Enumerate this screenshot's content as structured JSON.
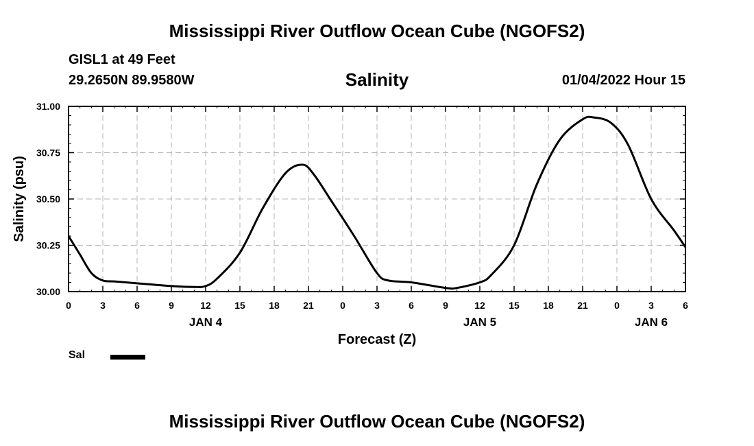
{
  "header": {
    "title": "Mississippi River Outflow Ocean Cube (NGOFS2)",
    "station": "GISL1 at 49 Feet",
    "coords": "29.2650N  89.9580W",
    "plot_title": "Salinity",
    "datetime": "01/04/2022 Hour 15"
  },
  "footer": {
    "title": "Mississippi River Outflow Ocean Cube (NGOFS2)"
  },
  "legend": {
    "label": "Sal",
    "color": "#000000"
  },
  "chart_data": {
    "type": "line",
    "title": "Salinity",
    "xlabel": "Forecast (Z)",
    "ylabel": "Salinity (psu)",
    "xlim": [
      0,
      54
    ],
    "ylim": [
      30.0,
      31.0
    ],
    "grid": true,
    "x_ticks": [
      0,
      3,
      6,
      9,
      12,
      15,
      18,
      21,
      24,
      27,
      30,
      33,
      36,
      39,
      42,
      45,
      48,
      51,
      54
    ],
    "x_tick_labels": [
      "0",
      "3",
      "6",
      "9",
      "12",
      "15",
      "18",
      "21",
      "0",
      "3",
      "6",
      "9",
      "12",
      "15",
      "18",
      "21",
      "0",
      "3",
      "6"
    ],
    "y_ticks": [
      30.0,
      30.25,
      30.5,
      30.75,
      31.0
    ],
    "y_tick_labels": [
      "30.00",
      "30.25",
      "30.50",
      "30.75",
      "31.00"
    ],
    "date_labels": [
      {
        "x": 12,
        "label": "JAN 4"
      },
      {
        "x": 36,
        "label": "JAN 5"
      },
      {
        "x": 51,
        "label": "JAN 6"
      }
    ],
    "series": [
      {
        "name": "Sal",
        "x": [
          0,
          1,
          2,
          3,
          4,
          6,
          9,
          11,
          12,
          13,
          15,
          17,
          19,
          20.5,
          21.5,
          23,
          25,
          27,
          28,
          30,
          33,
          34,
          36,
          37,
          39,
          41,
          43,
          45,
          46,
          47.5,
          49,
          51,
          53,
          54
        ],
        "values": [
          30.3,
          30.2,
          30.1,
          30.06,
          30.055,
          30.045,
          30.03,
          30.025,
          30.03,
          30.07,
          30.21,
          30.45,
          30.64,
          30.685,
          30.63,
          30.49,
          30.3,
          30.1,
          30.06,
          30.05,
          30.02,
          30.02,
          30.05,
          30.09,
          30.25,
          30.58,
          30.82,
          30.93,
          30.94,
          30.91,
          30.79,
          30.5,
          30.33,
          30.24
        ]
      }
    ]
  }
}
